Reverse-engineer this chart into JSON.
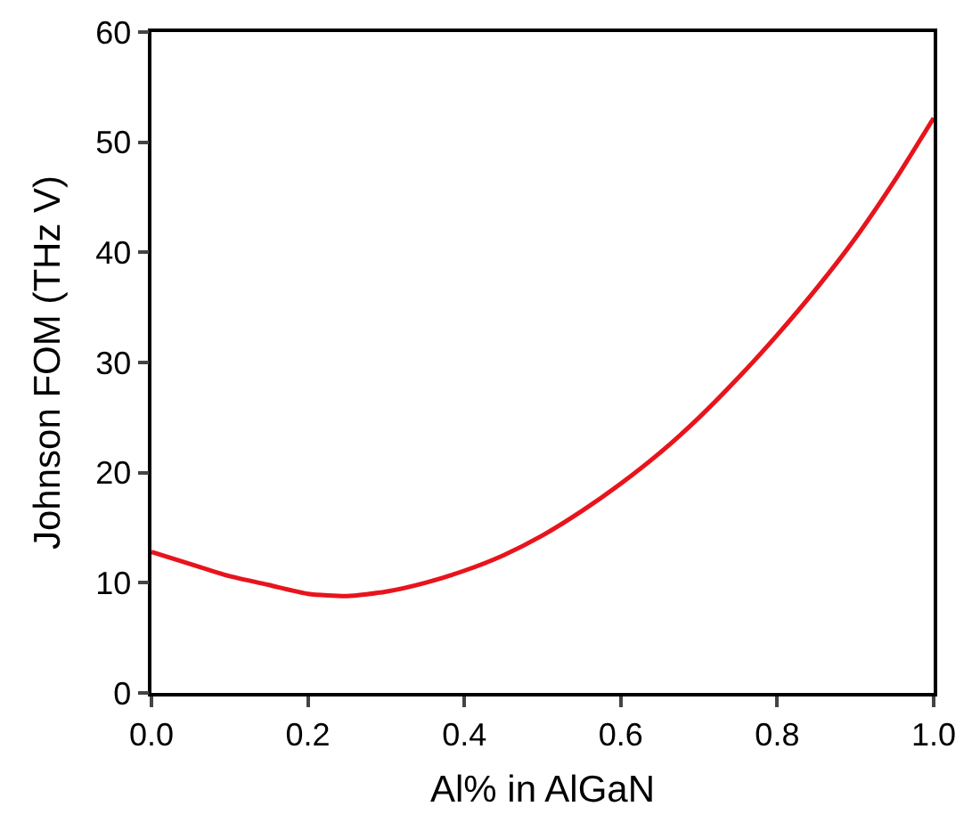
{
  "chart_data": {
    "type": "line",
    "xlabel": "Al% in AlGaN",
    "ylabel": "Johnson FOM (THz V)",
    "x": [
      0,
      0.05,
      0.1,
      0.15,
      0.2,
      0.25,
      0.3,
      0.35,
      0.4,
      0.45,
      0.5,
      0.55,
      0.6,
      0.65,
      0.7,
      0.75,
      0.8,
      0.85,
      0.9,
      0.95,
      1.0
    ],
    "series": [
      {
        "color": "#e8141c",
        "values": [
          12.8,
          11.7,
          10.6,
          9.8,
          9.0,
          8.8,
          9.2,
          10.0,
          11.1,
          12.5,
          14.3,
          16.5,
          19.0,
          21.8,
          25.0,
          28.6,
          32.5,
          36.7,
          41.3,
          46.5,
          52.2
        ]
      }
    ],
    "xlim": [
      0,
      1
    ],
    "xticks": [
      {
        "value": 0,
        "label": "0.0"
      },
      {
        "value": 0.2,
        "label": "0.2"
      },
      {
        "value": 0.4,
        "label": "0.4"
      },
      {
        "value": 0.6,
        "label": "0.6"
      },
      {
        "value": 0.8,
        "label": "0.8"
      },
      {
        "value": 1,
        "label": "1.0"
      }
    ],
    "ylim": [
      0,
      60
    ],
    "yticks": [
      0,
      10,
      20,
      30,
      40,
      50,
      60
    ],
    "grid": false,
    "marker": "none",
    "line_style": "solid"
  }
}
